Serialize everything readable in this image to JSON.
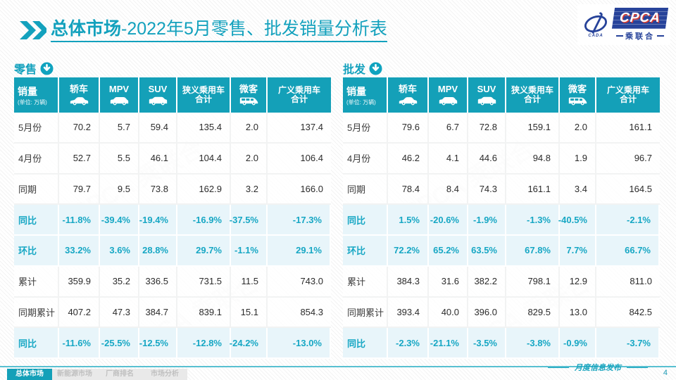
{
  "header": {
    "title_bold": "总体市场",
    "title_rest": "-2022年5月零售、批发销量分析表"
  },
  "logo": {
    "cpca": "CPCA",
    "sub": "乘联合",
    "cada": "CADA"
  },
  "table_header_first": {
    "title": "销量",
    "unit": "(单位: 万辆)"
  },
  "columns": [
    {
      "id": "sedan",
      "lines": [
        "轿车"
      ],
      "icon": "sedan-icon"
    },
    {
      "id": "mpv",
      "lines": [
        "MPV"
      ],
      "icon": "mpv-icon"
    },
    {
      "id": "suv",
      "lines": [
        "SUV"
      ],
      "icon": "suv-icon"
    },
    {
      "id": "narrow-total",
      "lines": [
        "狭义乘用车",
        "合计"
      ],
      "icon": null
    },
    {
      "id": "microvan",
      "lines": [
        "微客"
      ],
      "icon": "microvan-icon"
    },
    {
      "id": "broad-total",
      "lines": [
        "广义乘用车",
        "合计"
      ],
      "icon": null
    }
  ],
  "tables": [
    {
      "name": "零售",
      "rows": [
        {
          "label": "5月份",
          "type": "data",
          "values": [
            "70.2",
            "5.7",
            "59.4",
            "135.4",
            "2.0",
            "137.4"
          ]
        },
        {
          "label": "4月份",
          "type": "data",
          "values": [
            "52.7",
            "5.5",
            "46.1",
            "104.4",
            "2.0",
            "106.4"
          ]
        },
        {
          "label": "同期",
          "type": "data",
          "values": [
            "79.7",
            "9.5",
            "73.8",
            "162.9",
            "3.2",
            "166.0"
          ]
        },
        {
          "label": "同比",
          "type": "pct",
          "values": [
            "-11.8%",
            "-39.4%",
            "-19.4%",
            "-16.9%",
            "-37.5%",
            "-17.3%"
          ]
        },
        {
          "label": "环比",
          "type": "pct",
          "values": [
            "33.2%",
            "3.6%",
            "28.8%",
            "29.7%",
            "-1.1%",
            "29.1%"
          ]
        },
        {
          "label": "累计",
          "type": "data",
          "values": [
            "359.9",
            "35.2",
            "336.5",
            "731.5",
            "11.5",
            "743.0"
          ]
        },
        {
          "label": "同期累计",
          "type": "data",
          "values": [
            "407.2",
            "47.3",
            "384.7",
            "839.1",
            "15.1",
            "854.3"
          ]
        },
        {
          "label": "同比",
          "type": "pct",
          "values": [
            "-11.6%",
            "-25.5%",
            "-12.5%",
            "-12.8%",
            "-24.2%",
            "-13.0%"
          ]
        }
      ]
    },
    {
      "name": "批发",
      "rows": [
        {
          "label": "5月份",
          "type": "data",
          "values": [
            "79.6",
            "6.7",
            "72.8",
            "159.1",
            "2.0",
            "161.1"
          ]
        },
        {
          "label": "4月份",
          "type": "data",
          "values": [
            "46.2",
            "4.1",
            "44.6",
            "94.8",
            "1.9",
            "96.7"
          ]
        },
        {
          "label": "同期",
          "type": "data",
          "values": [
            "78.4",
            "8.4",
            "74.3",
            "161.1",
            "3.4",
            "164.5"
          ]
        },
        {
          "label": "同比",
          "type": "pct",
          "values": [
            "1.5%",
            "-20.6%",
            "-1.9%",
            "-1.3%",
            "-40.5%",
            "-2.1%"
          ]
        },
        {
          "label": "环比",
          "type": "pct",
          "values": [
            "72.2%",
            "65.2%",
            "63.5%",
            "67.8%",
            "7.7%",
            "66.7%"
          ]
        },
        {
          "label": "累计",
          "type": "data",
          "values": [
            "384.3",
            "31.6",
            "382.2",
            "798.1",
            "12.9",
            "811.0"
          ]
        },
        {
          "label": "同期累计",
          "type": "data",
          "values": [
            "393.4",
            "40.0",
            "396.0",
            "829.5",
            "13.0",
            "842.5"
          ]
        },
        {
          "label": "同比",
          "type": "pct",
          "values": [
            "-2.3%",
            "-21.1%",
            "-3.5%",
            "-3.8%",
            "-0.9%",
            "-3.7%"
          ]
        }
      ]
    }
  ],
  "footer": {
    "tabs": [
      {
        "label": "总体市场",
        "active": true
      },
      {
        "label": "新能源市场",
        "active": false
      },
      {
        "label": "厂商排名",
        "active": false
      },
      {
        "label": "市场分析",
        "active": false
      }
    ],
    "note": "月度信息发布",
    "page": "4"
  },
  "colors": {
    "teal": "#14a0b8",
    "pct_bg": "#e8f5fa",
    "pct_text": "#17a7c4",
    "logo_blue": "#27439a"
  }
}
